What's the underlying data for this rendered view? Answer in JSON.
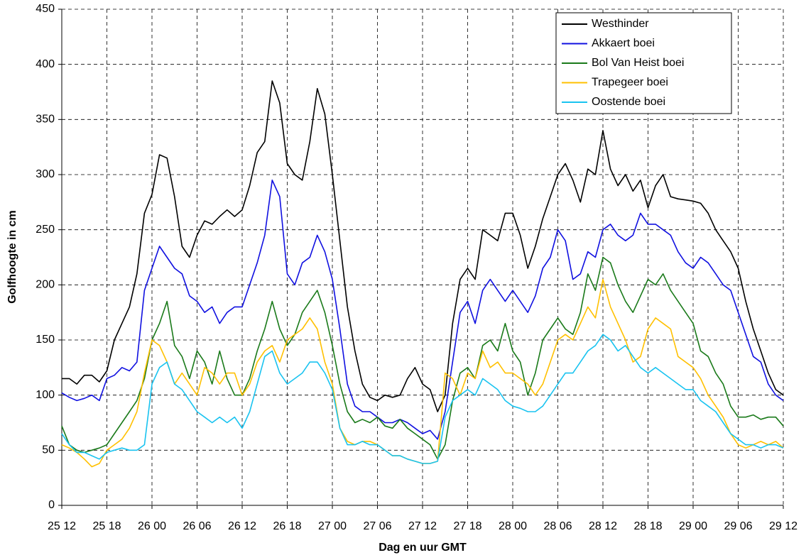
{
  "chart_data": {
    "type": "line",
    "x_label": "Dag en uur GMT",
    "y_label": "Golfhoogte in cm",
    "categories": [
      "25 12",
      null,
      null,
      null,
      null,
      null,
      "25 18",
      null,
      null,
      null,
      null,
      null,
      "26 00",
      null,
      null,
      null,
      null,
      null,
      "26 06",
      null,
      null,
      null,
      null,
      null,
      "26 12",
      null,
      null,
      null,
      null,
      null,
      "26 18",
      null,
      null,
      null,
      null,
      null,
      "27 00",
      null,
      null,
      null,
      null,
      null,
      "27 06",
      null,
      null,
      null,
      null,
      null,
      "27 12",
      null,
      null,
      null,
      null,
      null,
      "27 18",
      null,
      null,
      null,
      null,
      null,
      "28 00",
      null,
      null,
      null,
      null,
      null,
      "28 06",
      null,
      null,
      null,
      null,
      null,
      "28 12",
      null,
      null,
      null,
      null,
      null,
      "28 18",
      null,
      null,
      null,
      null,
      null,
      "29 00",
      null,
      null,
      null,
      null,
      null,
      "29 06",
      null,
      null,
      null,
      null,
      null,
      "29 12"
    ],
    "ylim": [
      0,
      450
    ],
    "yticks": [
      0,
      50,
      100,
      150,
      200,
      250,
      300,
      350,
      400,
      450
    ],
    "grid": true,
    "legend": "top-right",
    "series": [
      {
        "name": "Westhinder",
        "color": "#000000",
        "values": [
          115,
          115,
          110,
          118,
          118,
          112,
          122,
          150,
          165,
          180,
          210,
          265,
          282,
          318,
          315,
          280,
          235,
          225,
          245,
          258,
          255,
          262,
          268,
          262,
          268,
          290,
          320,
          330,
          385,
          365,
          310,
          300,
          295,
          330,
          378,
          355,
          300,
          240,
          180,
          140,
          110,
          98,
          95,
          100,
          98,
          100,
          115,
          125,
          110,
          105,
          85,
          100,
          165,
          205,
          215,
          205,
          250,
          245,
          240,
          265,
          265,
          245,
          215,
          235,
          260,
          280,
          300,
          310,
          295,
          275,
          305,
          300,
          340,
          305,
          290,
          300,
          285,
          295,
          270,
          290,
          300,
          280,
          278,
          277,
          276,
          274,
          265,
          250,
          240,
          230,
          215,
          185,
          160,
          140,
          120,
          105,
          100
        ]
      },
      {
        "name": "Akkaert boei",
        "color": "#1010e0",
        "values": [
          102,
          98,
          95,
          97,
          100,
          95,
          115,
          118,
          125,
          122,
          130,
          195,
          215,
          235,
          225,
          215,
          210,
          190,
          185,
          175,
          180,
          165,
          175,
          180,
          180,
          200,
          220,
          245,
          295,
          280,
          210,
          200,
          220,
          225,
          245,
          230,
          205,
          160,
          110,
          90,
          85,
          85,
          80,
          75,
          75,
          78,
          75,
          70,
          65,
          68,
          60,
          85,
          130,
          175,
          185,
          165,
          195,
          205,
          195,
          185,
          195,
          185,
          175,
          190,
          215,
          225,
          250,
          240,
          205,
          210,
          230,
          225,
          250,
          255,
          245,
          240,
          245,
          265,
          255,
          255,
          250,
          245,
          230,
          220,
          215,
          225,
          220,
          210,
          200,
          195,
          175,
          155,
          135,
          130,
          110,
          100,
          95
        ]
      },
      {
        "name": "Bol Van Heist boei",
        "color": "#1a7a1a",
        "values": [
          72,
          55,
          50,
          48,
          50,
          52,
          55,
          65,
          75,
          85,
          95,
          115,
          150,
          165,
          185,
          145,
          135,
          115,
          140,
          130,
          110,
          140,
          115,
          100,
          100,
          115,
          140,
          160,
          185,
          160,
          145,
          155,
          175,
          185,
          195,
          175,
          145,
          110,
          85,
          75,
          78,
          75,
          80,
          72,
          70,
          78,
          70,
          65,
          60,
          55,
          42,
          55,
          95,
          120,
          125,
          115,
          145,
          150,
          140,
          165,
          140,
          130,
          100,
          120,
          150,
          160,
          170,
          160,
          155,
          175,
          210,
          195,
          225,
          220,
          200,
          185,
          175,
          190,
          205,
          200,
          210,
          195,
          185,
          175,
          165,
          140,
          135,
          120,
          110,
          90,
          80,
          80,
          82,
          78,
          80,
          80,
          72
        ]
      },
      {
        "name": "Trapegeer boei",
        "color": "#ffc000",
        "values": [
          55,
          52,
          48,
          42,
          35,
          38,
          50,
          55,
          60,
          70,
          85,
          120,
          150,
          145,
          130,
          110,
          120,
          110,
          100,
          125,
          120,
          110,
          120,
          120,
          100,
          110,
          130,
          140,
          145,
          130,
          150,
          155,
          160,
          170,
          160,
          130,
          110,
          70,
          58,
          55,
          58,
          58,
          55,
          50,
          45,
          45,
          42,
          40,
          38,
          38,
          40,
          120,
          115,
          100,
          120,
          115,
          140,
          125,
          130,
          120,
          120,
          115,
          110,
          100,
          110,
          130,
          150,
          155,
          150,
          165,
          180,
          170,
          205,
          180,
          165,
          150,
          130,
          135,
          160,
          170,
          165,
          160,
          135,
          130,
          125,
          115,
          100,
          90,
          80,
          65,
          55,
          52,
          55,
          58,
          55,
          58,
          52
        ]
      },
      {
        "name": "Oostende boei",
        "color": "#19c3f0",
        "values": [
          65,
          55,
          48,
          48,
          45,
          42,
          48,
          50,
          52,
          50,
          50,
          55,
          110,
          125,
          130,
          110,
          105,
          95,
          85,
          80,
          75,
          80,
          75,
          80,
          70,
          85,
          110,
          135,
          140,
          120,
          110,
          115,
          120,
          130,
          130,
          120,
          105,
          70,
          55,
          55,
          58,
          55,
          55,
          50,
          45,
          45,
          42,
          40,
          38,
          38,
          40,
          80,
          95,
          100,
          105,
          100,
          115,
          110,
          105,
          95,
          90,
          88,
          85,
          85,
          90,
          100,
          110,
          120,
          120,
          130,
          140,
          145,
          155,
          150,
          140,
          145,
          135,
          125,
          120,
          125,
          120,
          115,
          110,
          105,
          105,
          95,
          90,
          85,
          75,
          65,
          60,
          55,
          55,
          52,
          55,
          55,
          52
        ]
      }
    ]
  }
}
